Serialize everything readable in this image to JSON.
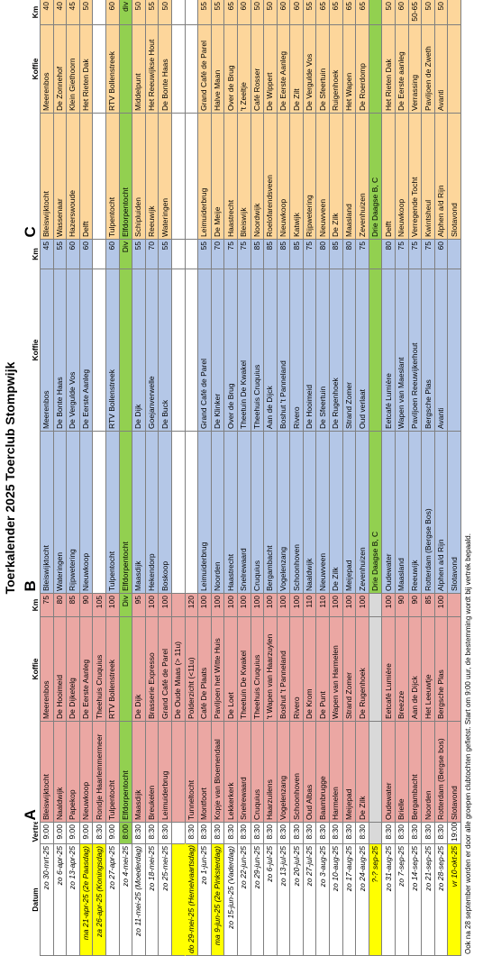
{
  "header": {
    "title": "Toerkalender 2025 Toerclub Stompwijk"
  },
  "table": {
    "columns": [
      "Datum",
      "Vertrek",
      "A",
      "Koffie",
      "Km",
      "B",
      "Koffie",
      "Km",
      "C",
      "Koffie",
      "Km"
    ],
    "rows": [
      [
        "zo 30-mrt-25",
        "9:00",
        "Bleiswijktocht",
        "Meerenbos",
        "75",
        "Bleiswijktocht",
        "Meerenbos",
        "45",
        "Bleiswijktocht",
        "Meerenbos",
        "40"
      ],
      [
        "zo 6-apr-25",
        "9:00",
        "Naaldwijk",
        "De Hooimeid",
        "80",
        "Wateringen",
        "De Bonte Haas",
        "55",
        "Wassenaar",
        "De Zonnehof",
        "40"
      ],
      [
        "zo 13-apr-25",
        "9:00",
        "Papekop",
        "De Dijketelg",
        "85",
        "Rijpwetering",
        "De Vergulde Vos",
        "60",
        "Hazerswoude",
        "Klein Giethoorn",
        "45"
      ],
      [
        "ma 21-apr-25 (2e Paasdag)",
        "9:00",
        "Nieuwkoop",
        "De Eerste Aanleg",
        "90",
        "Nieuwkoop",
        "De Eerste Aanleg",
        "60",
        "Delft",
        "Het Rieten Dak",
        "50"
      ],
      [
        "za 26-apr-25 (Koningsdag)",
        "8:30",
        "Rondje Haarlemmermeer",
        "Theehuis Cruquius",
        "105",
        null,
        null,
        null,
        null,
        null,
        null
      ],
      [
        "zo 27-apr-25",
        "9:00",
        "Tulpentocht",
        "RTV Bollenstreek",
        "100",
        "Tulpentocht",
        "RTV Bollenstreek",
        "60",
        "Tulpentocht",
        "RTV Bollenstreek",
        "60"
      ],
      [
        "zo 4-mei-25",
        "8:00",
        "Elfdorpentocht",
        null,
        "Div",
        "Elfdorpentocht",
        null,
        "Div",
        "Elfdorpentocht",
        null,
        "div"
      ],
      [
        "zo 11-mei-25 (Moederdag)",
        "8:30",
        "Maasdijk",
        "De Dijk",
        "95",
        "Maasdijk",
        "De Dijk",
        "55",
        "Schipluiden",
        "Middelpunt",
        "50"
      ],
      [
        "zo 18-mei-25",
        "8:30",
        "Breukelen",
        "Brasserie Expresso",
        "100",
        "Hekendorp",
        "Goejanverwelle",
        "70",
        "Reeuwijk",
        "Het Reeuwijkse Hout",
        "55"
      ],
      [
        "zo 25-mei-25",
        "8:30",
        "Leimuiderbrug",
        "Grand Café de Parel",
        "100",
        "Boskoop",
        "De Buck",
        "55",
        "Wateringen",
        "De Bonte Haas",
        "50"
      ],
      [
        null,
        null,
        null,
        "De Oude Maas (> 11u)",
        null,
        null,
        null,
        null,
        null,
        null,
        null
      ],
      [
        "do 29-mei-25 (Hemelvaartsdag)",
        "8:30",
        "Tunneltocht",
        "Polderzicht (<11u)",
        "120",
        null,
        null,
        null,
        null,
        null,
        null
      ],
      [
        "zo 1-jun-25",
        "8:30",
        "Montfoort",
        "Café De Plaats",
        "100",
        "Leimuiderbrug",
        "Grand Café de Parel",
        "55",
        "Leimuiderbrug",
        "Grand Café de Parel",
        "55"
      ],
      [
        "ma 9-jun-25 (2e Pinksterdag)",
        "8:30",
        "Kopje van Bloemendaal",
        "Paviljoen het Witte Huis",
        "100",
        "Noorden",
        "De Klinker",
        "70",
        "De Meije",
        "Halve Maan",
        "55"
      ],
      [
        "zo 15-jun-25 (Vaderdag)",
        "8:30",
        "Lekkerkerk",
        "De Loet",
        "100",
        "Haastrecht",
        "Over de Brug",
        "75",
        "Haastrecht",
        "Over de Brug",
        "65"
      ],
      [
        "zo 22-jun-25",
        "8:30",
        "Snelrewaard",
        "Theetuin De Kwakel",
        "100",
        "Snelrewaard",
        "Theetuin De Kwakel",
        "75",
        "Bleiswijk",
        "'t Zeeltje",
        "60"
      ],
      [
        "zo 29-jun-25",
        "8:30",
        "Cruquius",
        "Theehuis Cruquius",
        "100",
        "Cruquius",
        "Theehuis Cruquius",
        "85",
        "Noordwijk",
        "Café Rosser",
        "50"
      ],
      [
        "zo 6-jul-25",
        "8:30",
        "Haarzuilens",
        "'t Wapen van Haarzuylen",
        "100",
        "Bergambacht",
        "Aan de Dijck",
        "85",
        "Roelofarendsveen",
        "De Wippert",
        "50"
      ],
      [
        "zo 13-jul-25",
        "8:30",
        "Vogelenzang",
        "Boshut 't Panneland",
        "100",
        "Vogelenzang",
        "Boshut 't Panneland",
        "85",
        "Nieuwkoop",
        "De Eerste Aanleg",
        "60"
      ],
      [
        "zo 20-jul-25",
        "8:30",
        "Schoonhoven",
        "Rivero",
        "100",
        "Schoonhoven",
        "Rivero",
        "85",
        "Katwijk",
        "De Zilt",
        "60"
      ],
      [
        "zo 27-jul-25",
        "8:30",
        "Oud Albas",
        "De Krom",
        "110",
        "Naaldwijk",
        "De Hooimeid",
        "75",
        "Rijpwetering",
        "De Vergulde Vos",
        "55"
      ],
      [
        "zo 3-aug-25",
        "8:30",
        "Baambrugge",
        "De Punt",
        "110",
        "Nieuwveen",
        "De Sfeertuin",
        "80",
        "Nieuwveen",
        "De Sfeertuin",
        "65"
      ],
      [
        "zo 10-aug-25",
        "8:30",
        "Harmelen",
        "Wapen van Harmelen",
        "100",
        "De Zilk",
        "De Rugenhoek",
        "85",
        "De Zilk",
        "Ruigenhoek",
        "65"
      ],
      [
        "zo 17-aug-25",
        "8:30",
        "Meijepad",
        "Strand Zomer",
        "100",
        "Meijepad",
        "Strand Zomer",
        "80",
        "Maasland",
        "Het Wapen",
        "65"
      ],
      [
        "zo 24-aug-25",
        "8:30",
        "De Zilk",
        "De Rugenhoek",
        "100",
        "Zevenhuizen",
        "Oud verlaat",
        "75",
        "Zevenhuizen",
        "De Roerdomp",
        "65"
      ],
      [
        "?-? sep-25",
        null,
        null,
        null,
        null,
        "Drie Daagse B, C",
        null,
        null,
        "Drie Daagse B, C",
        null,
        null
      ],
      [
        "zo 31-aug-25",
        "8:30",
        "Oudewater",
        "Eetcafé Lumière",
        "100",
        "Oudewater",
        "Eetcafé Lumière",
        "80",
        "Delft",
        "Het Rieten Dak",
        "50"
      ],
      [
        "zo 7-sep-25",
        "8:30",
        "Brielle",
        "Breezze",
        "90",
        "Maasland",
        "Wapen van Maeslant",
        "75",
        "Nieuwkoop",
        "De Eerste aanleg",
        "60"
      ],
      [
        "zo 14-sep-25",
        "8:30",
        "Bergambacht",
        "Aan de Dijck",
        "90",
        "Reeuwijk",
        "Paviljoen Reeuwijkerhout",
        "75",
        "Verregende Tocht",
        "Verrassing",
        "50-65"
      ],
      [
        "zo 21-sep-25",
        "8:30",
        "Noorden",
        "Het Leeuwtje",
        "85",
        "Rotterdam (Bergse Bos)",
        "Bergsche Plas",
        "75",
        "Kwintsheul",
        "Paviljoen de Zweth",
        "50"
      ],
      [
        "zo 28-sep-25",
        "8:30",
        "Rotterdam (Bergse bos)",
        "Bergsche Plas",
        "100",
        "Alphen a/d Rijn",
        "Avanti",
        "60",
        "Alphen a/d Rijn",
        "Avanti",
        "50"
      ],
      [
        "vr 10-okt-25",
        "19:00",
        "Slotavond",
        null,
        null,
        "Slotavond",
        null,
        null,
        "Slotavond",
        null,
        null
      ]
    ]
  },
  "footnote": "Ook na 28 september worden er door alle groepen clubtochten gefietst. Start om 9:00 uur, de bestemming wordt bij vertrek bepaald."
}
